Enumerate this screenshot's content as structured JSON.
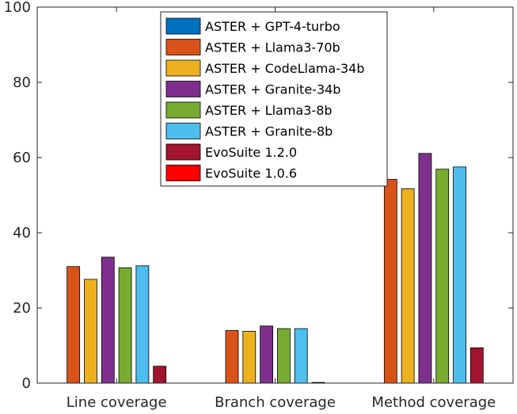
{
  "chart_data": {
    "type": "bar",
    "categories": [
      "Line coverage",
      "Branch coverage",
      "Method coverage"
    ],
    "ylim": [
      0,
      100
    ],
    "yticks": [
      0,
      20,
      40,
      60,
      80,
      100
    ],
    "grid": false,
    "legend_position": "top-center",
    "series": [
      {
        "name": "ASTER + GPT-4-turbo",
        "color": "#0072BD",
        "values": [
          0,
          0,
          0
        ]
      },
      {
        "name": "ASTER + Llama3-70b",
        "color": "#D95319",
        "values": [
          31.0,
          14.0,
          54.2
        ]
      },
      {
        "name": "ASTER + CodeLlama-34b",
        "color": "#EDB120",
        "values": [
          27.6,
          13.8,
          51.7
        ]
      },
      {
        "name": "ASTER + Granite-34b",
        "color": "#7E2F8E",
        "values": [
          33.5,
          15.2,
          61.1
        ]
      },
      {
        "name": "ASTER + Llama3-8b",
        "color": "#77AC30",
        "values": [
          30.7,
          14.5,
          56.9
        ]
      },
      {
        "name": "ASTER + Granite-8b",
        "color": "#4DBEEE",
        "values": [
          31.2,
          14.5,
          57.5
        ]
      },
      {
        "name": "EvoSuite 1.2.0",
        "color": "#A2142F",
        "values": [
          4.5,
          0.2,
          9.4
        ]
      },
      {
        "name": "EvoSuite 1.0.6",
        "color": "#FF0000",
        "values": [
          0,
          0,
          0
        ]
      }
    ]
  }
}
